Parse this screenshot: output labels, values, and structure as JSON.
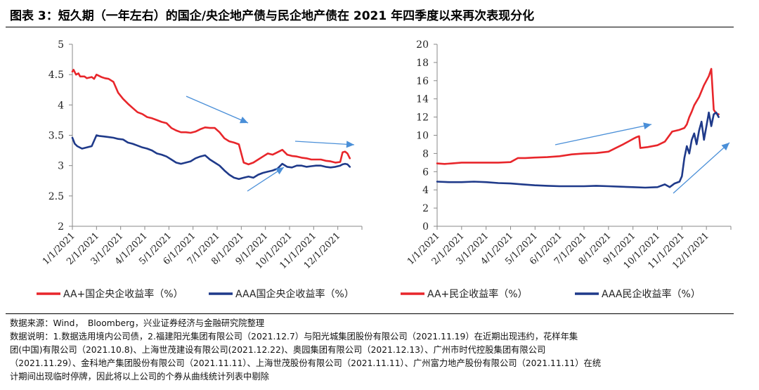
{
  "title": "图表 3：短久期（一年左右）的国企/央企地产债与民企地产债在 2021 年四季度以来再次表现分化",
  "chart_data": [
    {
      "type": "line",
      "x_labels": [
        "1/1/2021",
        "2/1/2021",
        "3/1/2021",
        "4/1/2021",
        "5/1/2021",
        "6/1/2021",
        "7/1/2021",
        "8/1/2021",
        "9/1/2021",
        "10/1/2021",
        "11/1/2021",
        "12/1/2021"
      ],
      "y_ticks": [
        "5",
        "4.5",
        "4",
        "3.5",
        "3",
        "2.5",
        "2"
      ],
      "ylim": [
        2,
        5
      ],
      "series": [
        {
          "name": "AA+国企央企收益率（%）",
          "color": "#e8262b",
          "x": [
            0,
            0.05,
            0.15,
            0.25,
            0.32,
            0.5,
            0.6,
            0.8,
            0.9,
            1.0,
            1.2,
            1.35,
            1.5,
            1.7,
            1.9,
            2.1,
            2.3,
            2.5,
            2.7,
            2.9,
            3.1,
            3.3,
            3.5,
            3.7,
            3.9,
            4.1,
            4.3,
            4.5,
            4.7,
            4.9,
            5.1,
            5.3,
            5.5,
            5.7,
            5.9,
            6.1,
            6.3,
            6.5,
            6.7,
            6.9,
            7.1,
            7.3,
            7.5,
            7.7,
            7.9,
            8.1,
            8.3,
            8.5,
            8.7,
            8.9,
            9.1,
            9.3,
            9.5,
            9.7,
            9.9,
            10.1,
            10.3,
            10.5,
            10.7,
            10.9,
            11.1,
            11.2,
            11.3,
            11.4,
            11.5
          ],
          "y": [
            4.55,
            4.58,
            4.5,
            4.52,
            4.47,
            4.47,
            4.44,
            4.46,
            4.43,
            4.5,
            4.46,
            4.44,
            4.43,
            4.38,
            4.2,
            4.1,
            4.02,
            3.95,
            3.88,
            3.85,
            3.8,
            3.78,
            3.75,
            3.72,
            3.7,
            3.62,
            3.58,
            3.55,
            3.55,
            3.54,
            3.56,
            3.6,
            3.63,
            3.62,
            3.62,
            3.55,
            3.45,
            3.4,
            3.38,
            3.35,
            3.05,
            3.02,
            3.05,
            3.1,
            3.15,
            3.2,
            3.18,
            3.22,
            3.26,
            3.18,
            3.16,
            3.15,
            3.13,
            3.12,
            3.1,
            3.1,
            3.1,
            3.08,
            3.07,
            3.05,
            3.06,
            3.22,
            3.23,
            3.2,
            3.12
          ]
        },
        {
          "name": "AAA国企央企收益率（%）",
          "color": "#1f3a8a",
          "x": [
            0,
            0.1,
            0.2,
            0.4,
            0.6,
            0.8,
            1.0,
            1.1,
            1.3,
            1.5,
            1.7,
            1.9,
            2.1,
            2.3,
            2.5,
            2.7,
            2.9,
            3.1,
            3.3,
            3.5,
            3.7,
            3.9,
            4.1,
            4.3,
            4.5,
            4.7,
            4.9,
            5.1,
            5.3,
            5.5,
            5.7,
            5.9,
            6.1,
            6.3,
            6.5,
            6.7,
            6.9,
            7.1,
            7.3,
            7.5,
            7.7,
            7.9,
            8.1,
            8.3,
            8.5,
            8.7,
            8.9,
            9.1,
            9.3,
            9.5,
            9.7,
            9.9,
            10.1,
            10.3,
            10.5,
            10.7,
            10.9,
            11.1,
            11.2,
            11.3,
            11.4,
            11.5
          ],
          "y": [
            3.46,
            3.36,
            3.32,
            3.28,
            3.3,
            3.32,
            3.5,
            3.49,
            3.48,
            3.47,
            3.46,
            3.44,
            3.43,
            3.38,
            3.36,
            3.33,
            3.3,
            3.28,
            3.25,
            3.2,
            3.18,
            3.15,
            3.1,
            3.05,
            3.03,
            3.05,
            3.07,
            3.12,
            3.15,
            3.17,
            3.1,
            3.05,
            3.0,
            2.92,
            2.85,
            2.8,
            2.78,
            2.8,
            2.82,
            2.8,
            2.85,
            2.88,
            2.9,
            2.92,
            2.95,
            3.03,
            2.98,
            2.97,
            3.0,
            3.0,
            2.98,
            2.99,
            3.0,
            3.0,
            2.98,
            2.97,
            2.98,
            3.0,
            3.02,
            3.03,
            3.02,
            2.98
          ]
        }
      ]
    },
    {
      "type": "line",
      "x_labels": [
        "1/1/2021",
        "2/1/2021",
        "3/1/2021",
        "4/1/2021",
        "5/1/2021",
        "6/1/2021",
        "7/1/2021",
        "8/1/2021",
        "9/1/2021",
        "10/1/2021",
        "11/1/2021",
        "12/1/2021"
      ],
      "y_ticks": [
        "20",
        "18",
        "16",
        "14",
        "12",
        "10",
        "8",
        "6",
        "4",
        "2",
        "0"
      ],
      "ylim": [
        0,
        20
      ],
      "series": [
        {
          "name": "AA+民企收益率（%）",
          "color": "#e8262b",
          "x": [
            0,
            0.3,
            0.6,
            1.0,
            1.5,
            2.0,
            2.5,
            3.0,
            3.3,
            3.6,
            4.0,
            4.5,
            5.0,
            5.5,
            6.0,
            6.5,
            7.0,
            7.3,
            7.6,
            7.8,
            8.0,
            8.15,
            8.25,
            8.3,
            8.6,
            9.0,
            9.3,
            9.6,
            9.9,
            10.1,
            10.2,
            10.3,
            10.4,
            10.5,
            10.7,
            10.9,
            11.1,
            11.2,
            11.3,
            11.4,
            11.5
          ],
          "y": [
            6.9,
            6.85,
            6.9,
            7.0,
            7.0,
            7.0,
            7.0,
            7.05,
            7.5,
            7.5,
            7.55,
            7.6,
            7.7,
            7.9,
            8.0,
            8.05,
            8.2,
            8.6,
            9.0,
            9.3,
            9.6,
            9.8,
            9.9,
            8.6,
            8.7,
            8.9,
            9.3,
            10.4,
            10.6,
            10.8,
            11.2,
            12.0,
            12.6,
            13.3,
            14.2,
            15.5,
            16.5,
            17.3,
            12.8,
            12.4,
            12.3
          ]
        },
        {
          "name": "AAA民企收益率（%）",
          "color": "#1f3a8a",
          "x": [
            0,
            0.5,
            1.0,
            1.5,
            2.0,
            2.5,
            3.0,
            3.5,
            4.0,
            4.5,
            5.0,
            5.5,
            6.0,
            6.5,
            7.0,
            7.5,
            8.0,
            8.5,
            9.0,
            9.3,
            9.5,
            9.7,
            9.9,
            10.0,
            10.1,
            10.2,
            10.3,
            10.4,
            10.5,
            10.6,
            10.7,
            10.8,
            10.9,
            11.0,
            11.1,
            11.2,
            11.3,
            11.4,
            11.5
          ],
          "y": [
            4.9,
            4.85,
            4.85,
            4.9,
            4.85,
            4.75,
            4.7,
            4.6,
            4.5,
            4.45,
            4.4,
            4.4,
            4.4,
            4.45,
            4.4,
            4.35,
            4.3,
            4.25,
            4.3,
            4.6,
            4.3,
            4.7,
            4.9,
            5.5,
            7.5,
            8.8,
            8.0,
            9.5,
            10.2,
            9.0,
            10.5,
            11.5,
            9.5,
            11.0,
            12.5,
            11.0,
            12.3,
            12.5,
            12.0
          ]
        }
      ]
    }
  ],
  "notes": {
    "source": "数据来源：Wind，　Bloomberg，兴业证券经济与金融研究院整理",
    "line1": "数据说明：1.数据选用境内公司债，2.福建阳光集团有限公司（2021.12.7）与阳光城集团股份有限公司（2021.11.19）在近期出现违约，花样年集",
    "line2": "团(中国)有限公司（2021.10.8)、上海世茂建设有限公司(2021.12.22)、奥园集团有限公司（2021.12.13）、广州市时代控股集团有限公司",
    "line3": "（2021.11.29）、金科地产集团股份有限公司（2021.11.11）、上海世茂股份有限公司（2021.11.11）、广州富力地产股份有限公司（2021.11.11）在统",
    "line4": "计期间出现临时停牌，因此将以上公司的个券从曲线统计列表中剔除"
  }
}
